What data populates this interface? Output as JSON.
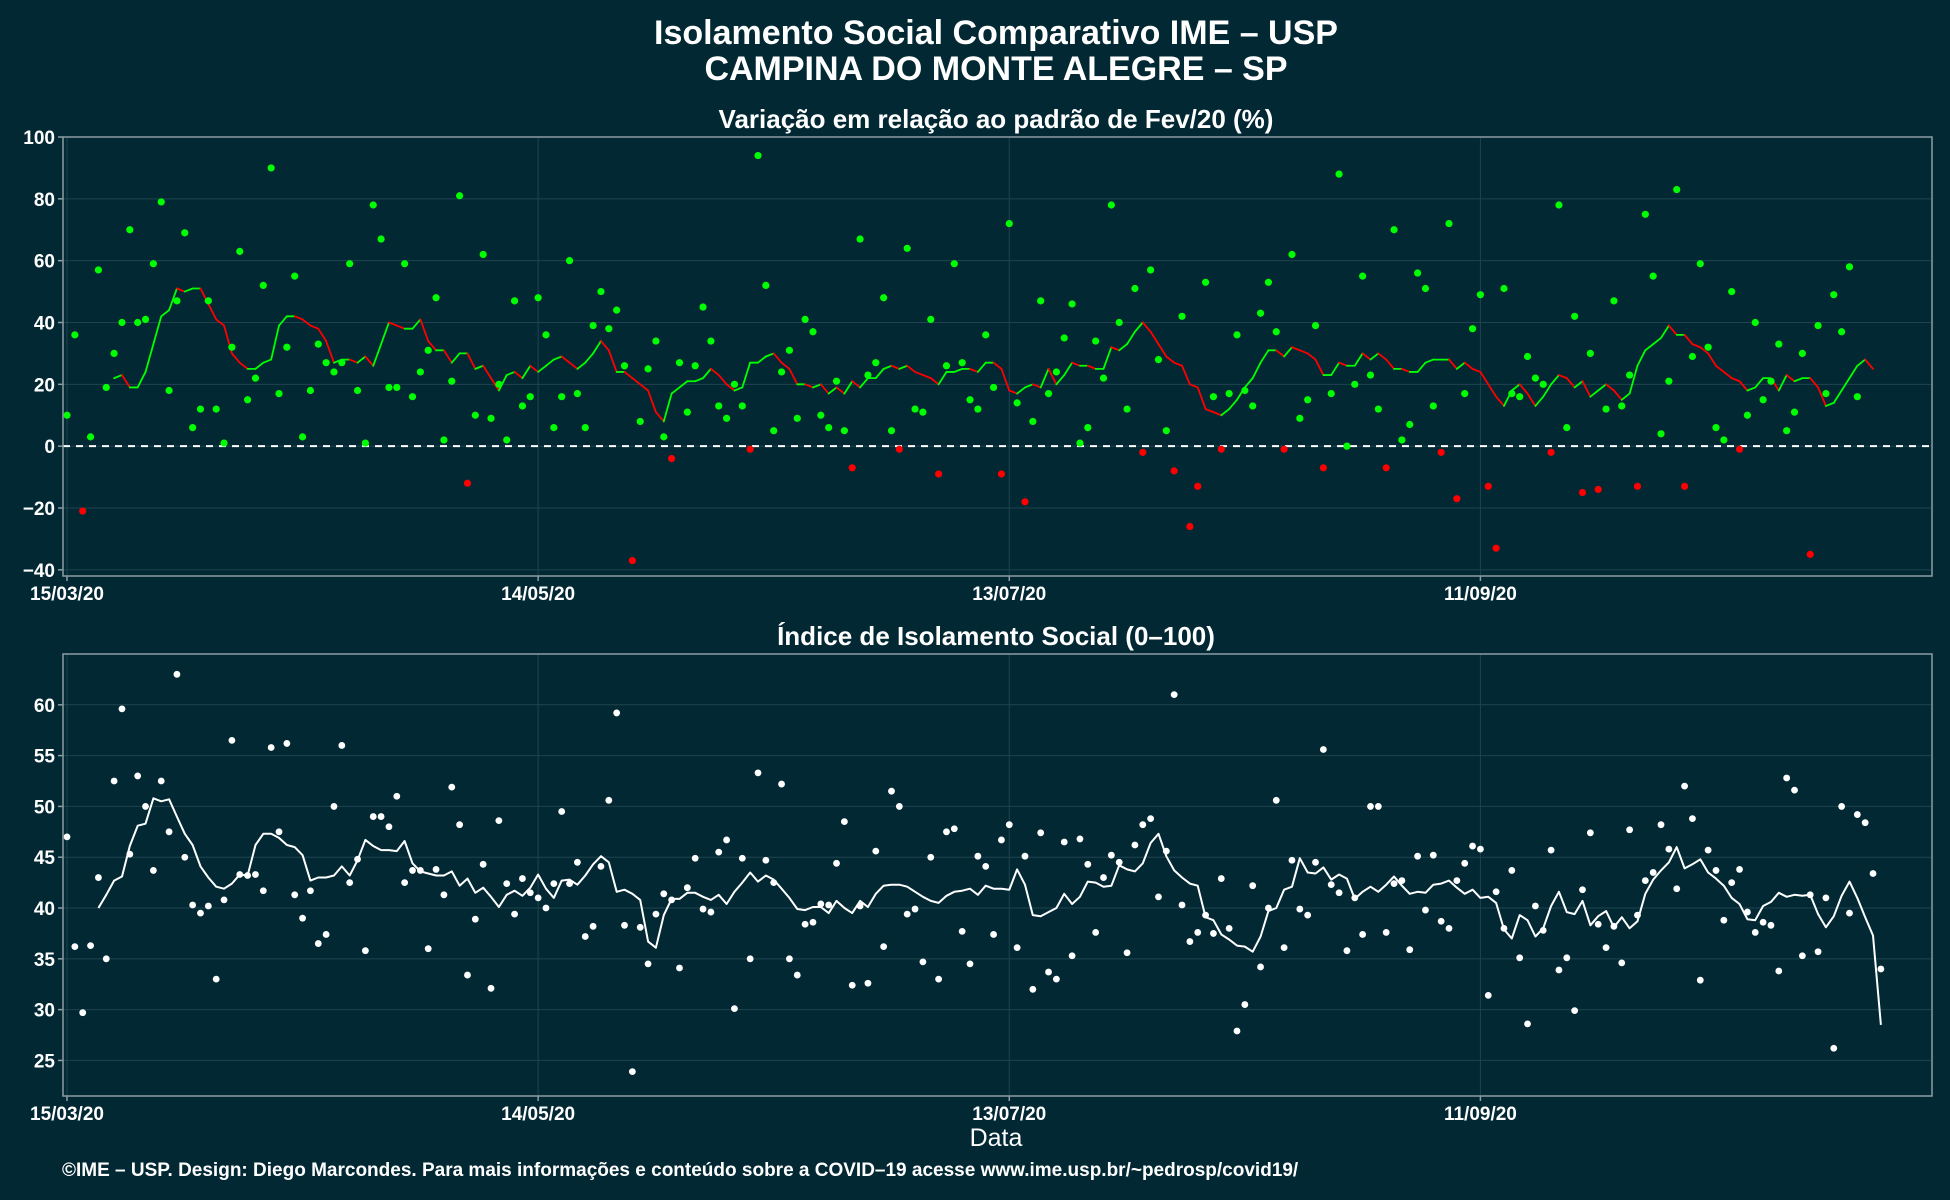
{
  "title_line1": "Isolamento Social Comparativo IME – USP",
  "title_line2": "CAMPINA DO MONTE ALEGRE – SP",
  "xlabel": "Data",
  "caption": "©IME – USP. Design: Diego Marcondes. Para mais informações e conteúdo sobre a COVID–19 acesse www.ime.usp.br/~pedrosp/covid19/",
  "colors": {
    "background": "#022833",
    "panel_border": "#8c9ca3",
    "grid": "#1f4450",
    "positive": "#00ff00",
    "negative": "#ff0000",
    "index_series": "#ffffff"
  },
  "chart_data": [
    {
      "type": "scatter",
      "title": "Variação em relação ao padrão de Fev/20 (%)",
      "x_start": "2020-03-15",
      "n_days": 238,
      "ylim": [
        -42,
        100
      ],
      "yticks": [
        "100",
        "80",
        "60",
        "40",
        "20",
        "0",
        "−20",
        "−40"
      ],
      "ytick_values": [
        100,
        80,
        60,
        40,
        20,
        0,
        -20,
        -40
      ],
      "xticks": [
        "15/03/20",
        "14/05/20",
        "13/07/20",
        "11/09/20"
      ],
      "xtick_dates": [
        "2020-03-15",
        "2020-05-14",
        "2020-07-13",
        "2020-09-11"
      ],
      "reference_line": 0,
      "grid": true,
      "point_color_rule": "green if value >= 0, red if value < 0",
      "values": [
        10,
        36,
        -21,
        3,
        57,
        19,
        30,
        40,
        70,
        40,
        41,
        59,
        79,
        18,
        47,
        69,
        6,
        12,
        47,
        12,
        1,
        32,
        63,
        15,
        22,
        52,
        90,
        17,
        32,
        55,
        3,
        18,
        33,
        27,
        24,
        27,
        59,
        18,
        1,
        78,
        67,
        19,
        19,
        59,
        16,
        24,
        31,
        48,
        2,
        21,
        81,
        -12,
        10,
        62,
        9,
        20,
        2,
        47,
        13,
        16,
        48,
        36,
        6,
        16,
        60,
        17,
        6,
        39,
        50,
        38,
        44,
        26,
        -37,
        8,
        25,
        34,
        3,
        -4,
        27,
        11,
        26,
        45,
        34,
        13,
        9,
        20,
        13,
        -1,
        94,
        52,
        5,
        24,
        31,
        9,
        41,
        37,
        10,
        6,
        21,
        5,
        -7,
        67,
        23,
        27,
        48,
        5,
        -1,
        64,
        12,
        11,
        41,
        -9,
        26,
        59,
        27,
        15,
        12,
        36,
        19,
        -9,
        72,
        14,
        -18,
        8,
        47,
        17,
        24,
        35,
        46,
        1,
        6,
        34,
        22,
        78,
        40,
        12,
        51,
        -2,
        57,
        28,
        5,
        -8,
        42,
        -26,
        -13,
        53,
        16,
        -1,
        17,
        36,
        18,
        13,
        43,
        53,
        37,
        -1,
        62,
        9,
        15,
        39,
        -7,
        17,
        88,
        0,
        20,
        55,
        23,
        12,
        -7,
        70,
        2,
        7,
        56,
        51,
        13,
        -2,
        72,
        -17,
        17,
        38,
        49,
        -13,
        -33,
        51,
        17,
        16,
        29,
        22,
        20,
        -2,
        78,
        6,
        42,
        -15,
        30,
        -14,
        12,
        47,
        13,
        23,
        -13,
        75,
        55,
        4,
        21,
        83,
        -13,
        29,
        59,
        32,
        6,
        2,
        50,
        -1,
        10,
        40,
        15,
        21,
        33,
        5,
        11,
        30,
        -35,
        39,
        17,
        49,
        37,
        58,
        16
      ],
      "moving_average": [
        null,
        null,
        null,
        null,
        null,
        null,
        22.0,
        23.0,
        19.0,
        19.0,
        24.0,
        33.0,
        42.0,
        44.0,
        51.0,
        50.0,
        51.0,
        51.0,
        46.0,
        41.0,
        39.0,
        30.0,
        27.0,
        25.0,
        25.0,
        27.0,
        28.0,
        39.0,
        42.0,
        42.0,
        41.0,
        39.0,
        38.0,
        34.0,
        27.0,
        28.0,
        28.0,
        27.0,
        29.0,
        26.0,
        33.0,
        40.0,
        39.0,
        38.0,
        38.0,
        41.0,
        34.0,
        31.0,
        31.0,
        27.0,
        30.0,
        30.0,
        25.0,
        26.0,
        22.0,
        18.0,
        23.0,
        24.0,
        22.0,
        26.0,
        24.0,
        26.0,
        28.0,
        29.0,
        27.0,
        25.0,
        27.0,
        30.0,
        34.0,
        31.0,
        24.0,
        24.0,
        22.0,
        20.0,
        18.0,
        11.0,
        8.0,
        17.0,
        19.0,
        21.0,
        21.0,
        22.0,
        25.0,
        23.0,
        20.0,
        18.0,
        19.0,
        27.0,
        27.0,
        29.0,
        30.0,
        27.0,
        25.0,
        20.0,
        20.0,
        19.0,
        20.0,
        17.0,
        19.0,
        17.0,
        21.0,
        19.0,
        22.0,
        22.0,
        25.0,
        26.0,
        25.0,
        26.0,
        24.0,
        23.0,
        22.0,
        20.0,
        24.0,
        24.0,
        25.0,
        25.0,
        24.0,
        27.0,
        27.0,
        25.0,
        18.0,
        17.0,
        19.0,
        20.0,
        19.0,
        25.0,
        20.0,
        23.0,
        27.0,
        26.0,
        26.0,
        25.0,
        25.0,
        32.0,
        31.0,
        33.0,
        37.0,
        40.0,
        37.0,
        33.0,
        29.0,
        27.0,
        26.0,
        20.0,
        19.0,
        12.0,
        11.0,
        10.0,
        12.0,
        15.0,
        19.0,
        22.0,
        27.0,
        31.0,
        31.0,
        29.0,
        32.0,
        31.0,
        30.0,
        28.0,
        23.0,
        23.0,
        27.0,
        26.0,
        26.0,
        30.0,
        28.0,
        30.0,
        28.0,
        25.0,
        25.0,
        24.0,
        24.0,
        27.0,
        28.0,
        28.0,
        28.0,
        25.0,
        27.0,
        25.0,
        24.0,
        20.0,
        16.0,
        13.0,
        18.0,
        20.0,
        17.0,
        13.0,
        16.0,
        20.0,
        23.0,
        22.0,
        19.0,
        21.0,
        16.0,
        18.0,
        20.0,
        18.0,
        15.0,
        17.0,
        26.0,
        31.0,
        33.0,
        35.0,
        39.0,
        36.0,
        36.0,
        33.0,
        32.0,
        30.0,
        26.0,
        24.0,
        22.0,
        21.0,
        18.0,
        19.0,
        22.0,
        22.0,
        18.0,
        23.0,
        21.0,
        22.0,
        22.0,
        19.0,
        13.0,
        14.0,
        18.0,
        22.0,
        26.0,
        28.0,
        25.0
      ]
    },
    {
      "type": "scatter",
      "title": "Índice de Isolamento Social (0–100)",
      "x_start": "2020-03-15",
      "n_days": 238,
      "ylim": [
        21.5,
        65
      ],
      "yticks": [
        "60",
        "55",
        "50",
        "45",
        "40",
        "35",
        "30",
        "25"
      ],
      "ytick_values": [
        60,
        55,
        50,
        45,
        40,
        35,
        30,
        25
      ],
      "xticks": [
        "15/03/20",
        "14/05/20",
        "13/07/20",
        "11/09/20"
      ],
      "xtick_dates": [
        "2020-03-15",
        "2020-05-14",
        "2020-07-13",
        "2020-09-11"
      ],
      "grid": true,
      "values": [
        47.0,
        36.2,
        29.7,
        36.3,
        43.0,
        35.0,
        52.5,
        59.6,
        45.3,
        53.0,
        50.0,
        43.7,
        52.5,
        47.5,
        63.0,
        45.0,
        40.3,
        39.5,
        40.2,
        33.0,
        40.8,
        56.5,
        43.3,
        43.2,
        43.3,
        41.7,
        55.8,
        47.5,
        56.2,
        41.3,
        39.0,
        41.7,
        36.5,
        37.4,
        50.0,
        56.0,
        42.5,
        44.8,
        35.8,
        49.0,
        49.0,
        48.0,
        51.0,
        42.5,
        43.7,
        43.7,
        36.0,
        43.8,
        41.3,
        51.9,
        48.2,
        33.4,
        38.9,
        44.3,
        32.1,
        48.6,
        42.4,
        39.4,
        42.9,
        41.5,
        41.0,
        40.0,
        42.4,
        49.5,
        42.4,
        44.5,
        37.2,
        38.2,
        44.1,
        50.6,
        59.2,
        38.3,
        23.9,
        38.1,
        34.5,
        39.4,
        41.4,
        40.8,
        34.1,
        42.0,
        44.9,
        39.9,
        39.6,
        45.5,
        46.7,
        30.1,
        44.9,
        35.0,
        53.3,
        44.7,
        42.5,
        52.2,
        35.0,
        33.4,
        38.4,
        38.6,
        40.4,
        40.3,
        44.4,
        48.5,
        32.4,
        40.2,
        32.6,
        45.6,
        36.2,
        51.5,
        50.0,
        39.4,
        39.9,
        34.7,
        45.0,
        33.0,
        47.5,
        47.8,
        37.7,
        34.5,
        45.1,
        44.1,
        37.4,
        46.7,
        48.2,
        36.1,
        45.1,
        32.0,
        47.4,
        33.7,
        33.0,
        46.5,
        35.3,
        46.8,
        44.3,
        37.6,
        43.0,
        45.2,
        44.5,
        35.6,
        46.2,
        48.2,
        48.8,
        41.1,
        45.6,
        61.0,
        40.3,
        36.7,
        37.6,
        39.3,
        37.5,
        42.9,
        38.0,
        27.9,
        30.5,
        42.2,
        34.2,
        40.0,
        50.6,
        36.1,
        44.7,
        39.9,
        39.3,
        44.5,
        55.6,
        42.3,
        41.5,
        35.8,
        41.0,
        37.4,
        50.0,
        50.0,
        37.6,
        42.4,
        42.7,
        35.9,
        45.1,
        39.8,
        45.2,
        38.7,
        38.0,
        42.7,
        44.4,
        46.1,
        45.8,
        31.4,
        41.6,
        38.0,
        43.7,
        35.1,
        28.6,
        40.2,
        37.8,
        45.7,
        33.9,
        35.1,
        29.9,
        41.8,
        47.4,
        38.4,
        36.1,
        38.2,
        34.6,
        47.7,
        39.3,
        42.7,
        43.5,
        48.2,
        45.8,
        41.9,
        52.0,
        48.8,
        32.9,
        45.7,
        43.7,
        38.8,
        42.5,
        43.8,
        39.6,
        37.6,
        38.6,
        38.3,
        33.8,
        52.8,
        51.6,
        35.3,
        41.3,
        35.7,
        41.0,
        26.2,
        50.0,
        39.5,
        49.2,
        48.4,
        43.4,
        34.0
      ],
      "moving_average": [
        null,
        null,
        null,
        null,
        40.0,
        41.3,
        42.7,
        43.1,
        46.1,
        48.1,
        48.3,
        50.8,
        50.5,
        50.7,
        49.0,
        47.3,
        46.2,
        44.1,
        43.0,
        42.1,
        41.9,
        42.4,
        43.3,
        43.2,
        46.2,
        47.3,
        47.3,
        46.9,
        46.2,
        46.0,
        45.2,
        42.7,
        43.0,
        43.0,
        43.2,
        44.1,
        43.2,
        44.7,
        46.7,
        46.1,
        45.7,
        45.7,
        45.6,
        46.6,
        44.4,
        43.6,
        43.4,
        43.2,
        43.2,
        43.6,
        42.2,
        42.9,
        41.5,
        42.0,
        41.1,
        40.1,
        41.3,
        41.7,
        41.2,
        42.0,
        43.3,
        41.9,
        41.0,
        42.7,
        42.8,
        42.3,
        43.2,
        44.3,
        45.1,
        44.5,
        41.6,
        41.8,
        41.4,
        40.8,
        36.7,
        36.1,
        39.3,
        40.9,
        40.9,
        41.5,
        41.5,
        41.1,
        40.8,
        41.3,
        40.4,
        41.6,
        42.5,
        43.5,
        42.6,
        43.2,
        42.8,
        41.9,
        41.0,
        39.9,
        39.8,
        40.1,
        40.1,
        39.5,
        40.7,
        40.0,
        39.5,
        40.7,
        40.1,
        41.4,
        42.2,
        42.3,
        42.3,
        42.1,
        41.6,
        41.1,
        40.7,
        40.5,
        41.2,
        41.6,
        41.7,
        41.9,
        41.3,
        42.2,
        41.9,
        41.9,
        41.8,
        43.8,
        42.3,
        39.3,
        39.2,
        39.6,
        40.0,
        41.4,
        40.4,
        41.1,
        42.6,
        42.5,
        42.1,
        42.2,
        44.2,
        43.8,
        43.6,
        44.4,
        46.4,
        47.3,
        45.1,
        43.7,
        43.0,
        42.4,
        42.2,
        39.1,
        38.8,
        37.4,
        36.9,
        36.3,
        36.2,
        35.7,
        37.2,
        39.7,
        40.0,
        41.8,
        42.1,
        44.9,
        43.5,
        43.4,
        44.0,
        42.8,
        43.3,
        42.9,
        40.9,
        41.6,
        42.1,
        41.6,
        42.3,
        43.1,
        42.2,
        41.4,
        41.6,
        41.5,
        42.3,
        42.4,
        42.7,
        42.0,
        41.4,
        41.8,
        41.0,
        41.1,
        40.5,
        37.9,
        37.0,
        39.3,
        38.8,
        37.2,
        38.0,
        40.2,
        41.6,
        39.6,
        39.4,
        40.7,
        38.3,
        39.2,
        39.7,
        38.1,
        39.1,
        38.0,
        38.7,
        41.4,
        42.8,
        43.7,
        44.5,
        46.0,
        43.9,
        44.3,
        44.8,
        43.5,
        42.9,
        42.2,
        41.0,
        40.4,
        38.9,
        38.8,
        40.2,
        40.6,
        41.5,
        41.1,
        41.3,
        41.2,
        41.3,
        39.4,
        38.1,
        39.2,
        41.2,
        42.6,
        41.0,
        39.1,
        37.3,
        28.5
      ]
    }
  ]
}
